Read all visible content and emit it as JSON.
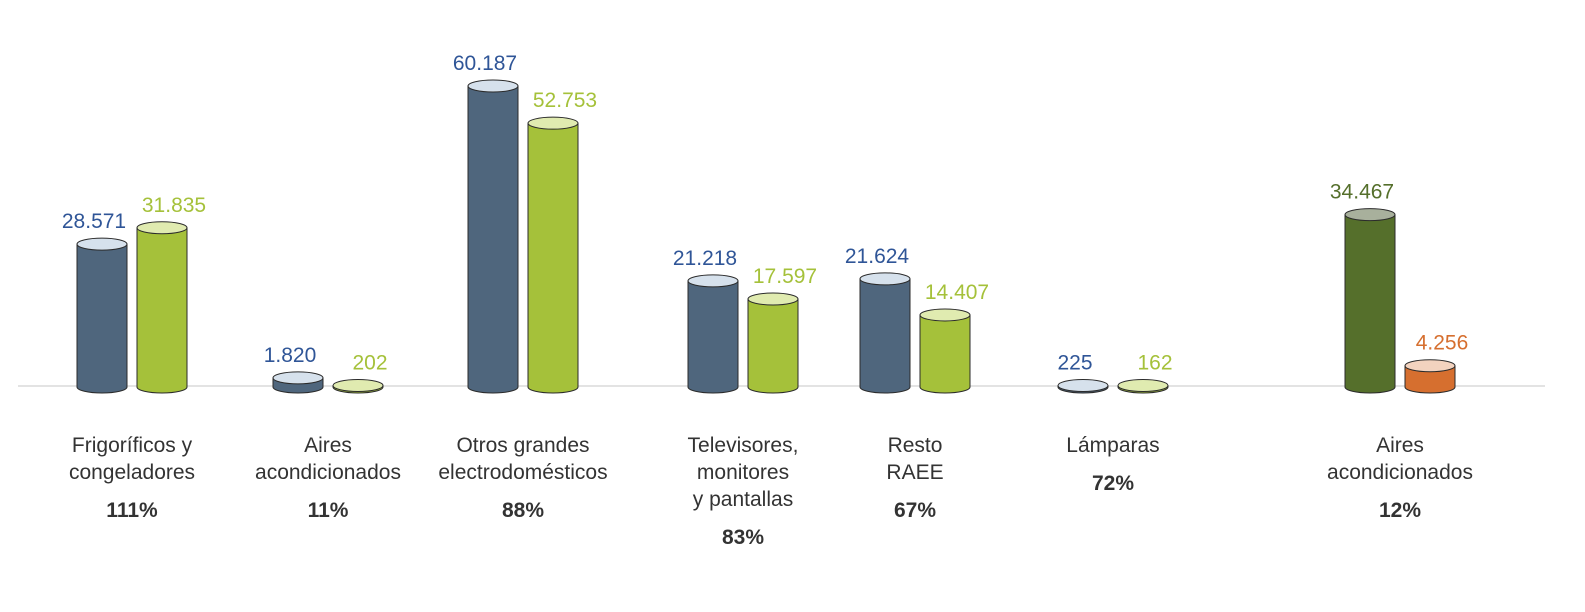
{
  "chart_data": {
    "type": "bar",
    "title": "",
    "xlabel": "",
    "ylabel": "",
    "ylim": [
      0,
      60187
    ],
    "grid": false,
    "legend": "none",
    "categories": [
      {
        "label": "Frigoríficos y\ncongeladores",
        "percent": "111%",
        "bars": [
          {
            "value": 28571,
            "text": "28.571",
            "color": "#4f667d",
            "top_color": "#d6e1ec",
            "label_color": "#2f5597"
          },
          {
            "value": 31835,
            "text": "31.835",
            "color": "#a5c13a",
            "top_color": "#e0ebb0",
            "label_color": "#a5c13a"
          }
        ]
      },
      {
        "label": "Aires\nacondicionados",
        "percent": "11%",
        "bars": [
          {
            "value": 1820,
            "text": "1.820",
            "color": "#4f667d",
            "top_color": "#d6e1ec",
            "label_color": "#2f5597"
          },
          {
            "value": 202,
            "text": "202",
            "color": "#a5c13a",
            "top_color": "#e0ebb0",
            "label_color": "#a5c13a"
          }
        ]
      },
      {
        "label": "Otros grandes\nelectrodomésticos",
        "percent": "88%",
        "bars": [
          {
            "value": 60187,
            "text": "60.187",
            "color": "#4f667d",
            "top_color": "#d6e1ec",
            "label_color": "#2f5597"
          },
          {
            "value": 52753,
            "text": "52.753",
            "color": "#a5c13a",
            "top_color": "#e0ebb0",
            "label_color": "#a5c13a"
          }
        ]
      },
      {
        "label": "Televisores,\nmonitores\ny pantallas",
        "percent": "83%",
        "bars": [
          {
            "value": 21218,
            "text": "21.218",
            "color": "#4f667d",
            "top_color": "#d6e1ec",
            "label_color": "#2f5597"
          },
          {
            "value": 17597,
            "text": "17.597",
            "color": "#a5c13a",
            "top_color": "#e0ebb0",
            "label_color": "#a5c13a"
          }
        ]
      },
      {
        "label": "Resto\nRAEE",
        "percent": "67%",
        "bars": [
          {
            "value": 21624,
            "text": "21.624",
            "color": "#4f667d",
            "top_color": "#d6e1ec",
            "label_color": "#2f5597"
          },
          {
            "value": 14407,
            "text": "14.407",
            "color": "#a5c13a",
            "top_color": "#e0ebb0",
            "label_color": "#a5c13a"
          }
        ]
      },
      {
        "label": "Lámparas",
        "percent": "72%",
        "bars": [
          {
            "value": 225,
            "text": "225",
            "color": "#4f667d",
            "top_color": "#d6e1ec",
            "label_color": "#2f5597"
          },
          {
            "value": 162,
            "text": "162",
            "color": "#a5c13a",
            "top_color": "#e0ebb0",
            "label_color": "#a5c13a"
          }
        ]
      },
      {
        "label": "Aires\nacondicionados",
        "percent": "12%",
        "bars": [
          {
            "value": 34467,
            "text": "34.467",
            "color": "#556f2b",
            "top_color": "#a8b09c",
            "label_color": "#556f2b"
          },
          {
            "value": 4256,
            "text": "4.256",
            "color": "#d66f2f",
            "top_color": "#f3d3bf",
            "label_color": "#d66f2f"
          }
        ]
      }
    ]
  }
}
